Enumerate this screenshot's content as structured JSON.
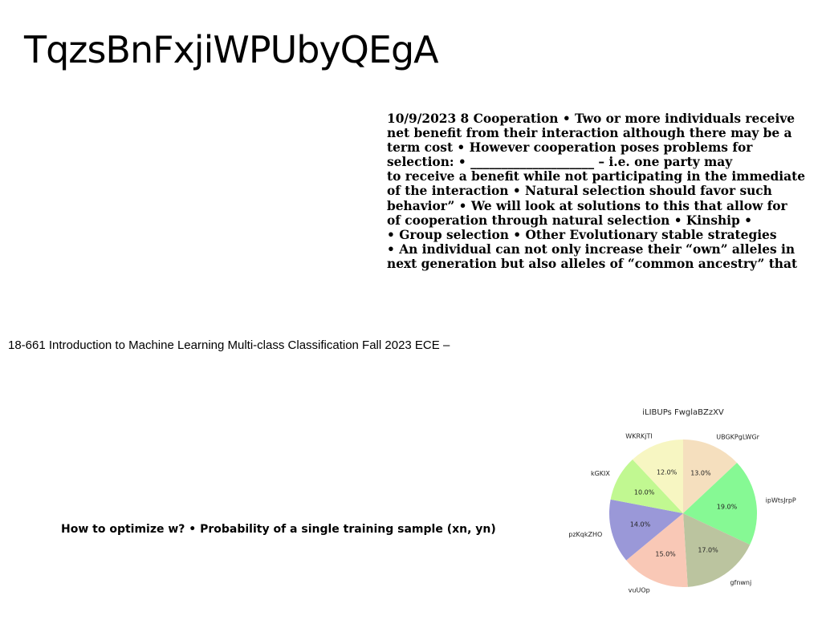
{
  "title": "TqzsBnFxjiWPUbyQEgA",
  "body_lines": [
    "10/9/2023 8 Cooperation • Two or more individuals receive",
    "net benefit from their interaction although there may be a",
    "term cost • However cooperation poses problems for",
    "selection: • ____________________ – i.e. one party may",
    "to receive a benefit while not participating in the immediate",
    "of the interaction • Natural selection should favor such",
    "behavior” • We will look at solutions to this that allow for",
    "of cooperation through natural selection • Kinship •",
    "• Group selection • Other Evolutionary stable strategies",
    "• An individual can not only increase their “own” alleles in",
    "next generation but also alleles of “common ancestry” that"
  ],
  "course_line": "18-661 Introduction to Machine Learning Multi-class Classification Fall 2023 ECE –",
  "question_line": "How to optimize w? • Probability of a single training sample (xn, yn)",
  "chart_data": {
    "type": "pie",
    "title": "iLIBUPs FwglaBZzXV",
    "start_angle_deg": 90,
    "direction": "clockwise",
    "slices": [
      {
        "label": "UBGKPgLWGr",
        "value": 13.0,
        "pct_label": "13.0%",
        "color": "#f5dfbe"
      },
      {
        "label": "ipWtsJrpP",
        "value": 19.0,
        "pct_label": "19.0%",
        "color": "#86f994"
      },
      {
        "label": "gfnwnj",
        "value": 17.0,
        "pct_label": "17.0%",
        "color": "#bbc49f"
      },
      {
        "label": "vuUOp",
        "value": 15.0,
        "pct_label": "15.0%",
        "color": "#f9c8b6"
      },
      {
        "label": "pzKqkZHO",
        "value": 14.0,
        "pct_label": "14.0%",
        "color": "#9a98d8"
      },
      {
        "label": "kGKIX",
        "value": 10.0,
        "pct_label": "10.0%",
        "color": "#c1f891"
      },
      {
        "label": "WKRKjTI",
        "value": 12.0,
        "pct_label": "12.0%",
        "color": "#f7f6c2"
      }
    ]
  }
}
